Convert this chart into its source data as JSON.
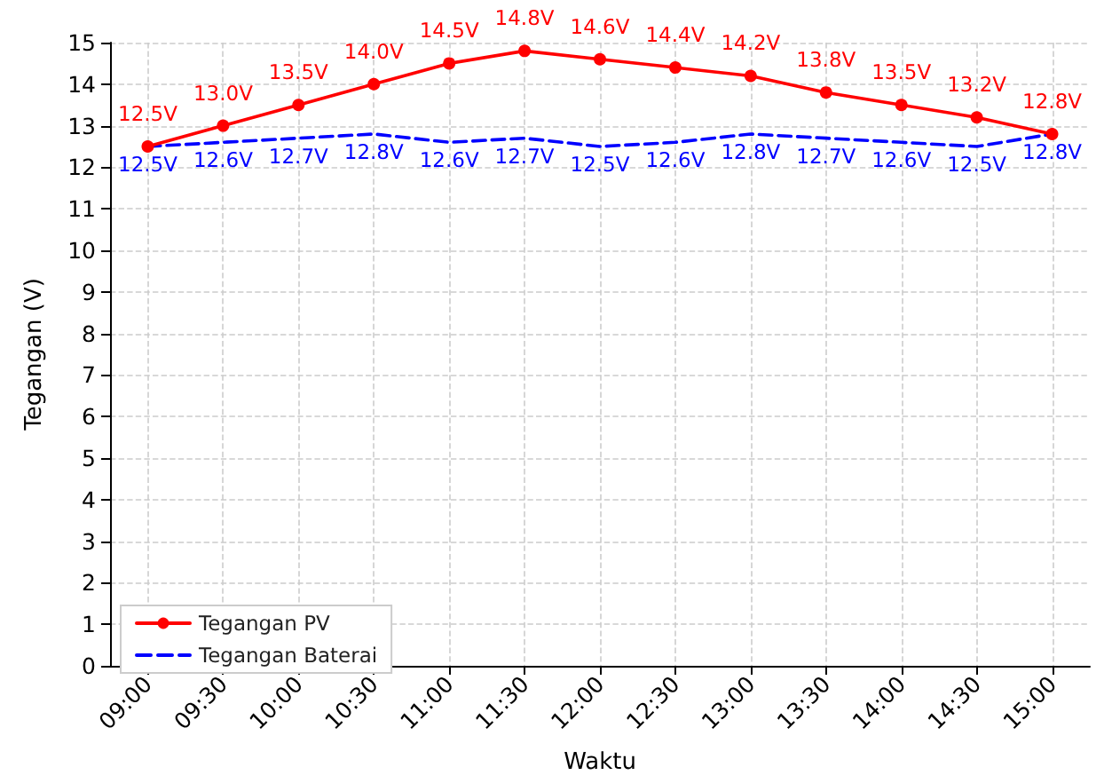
{
  "chart_data": {
    "type": "line",
    "xlabel": "Waktu",
    "ylabel": "Tegangan (V)",
    "categories": [
      "09:00",
      "09:30",
      "10:00",
      "10:30",
      "11:00",
      "11:30",
      "12:00",
      "12:30",
      "13:00",
      "13:30",
      "14:00",
      "14:30",
      "15:00"
    ],
    "series": [
      {
        "name": "Tegangan PV",
        "color": "#ff0000",
        "marker": "circle",
        "line_style": "solid",
        "values": [
          12.5,
          13.0,
          13.5,
          14.0,
          14.5,
          14.8,
          14.6,
          14.4,
          14.2,
          13.8,
          13.5,
          13.2,
          12.8
        ],
        "value_labels": [
          "12.5V",
          "13.0V",
          "13.5V",
          "14.0V",
          "14.5V",
          "14.8V",
          "14.6V",
          "14.4V",
          "14.2V",
          "13.8V",
          "13.5V",
          "13.2V",
          "12.8V"
        ]
      },
      {
        "name": "Tegangan Baterai",
        "color": "#0000ff",
        "marker": "none",
        "line_style": "dashed",
        "values": [
          12.5,
          12.6,
          12.7,
          12.8,
          12.6,
          12.7,
          12.5,
          12.6,
          12.8,
          12.7,
          12.6,
          12.5,
          12.8
        ],
        "value_labels": [
          "12.5V",
          "12.6V",
          "12.7V",
          "12.8V",
          "12.6V",
          "12.7V",
          "12.5V",
          "12.6V",
          "12.8V",
          "12.7V",
          "12.6V",
          "12.5V",
          "12.8V"
        ]
      }
    ],
    "ylim": [
      0,
      15
    ],
    "yticks": [
      0,
      1,
      2,
      3,
      4,
      5,
      6,
      7,
      8,
      9,
      10,
      11,
      12,
      13,
      14,
      15
    ],
    "grid": true,
    "legend": "bottom left"
  }
}
